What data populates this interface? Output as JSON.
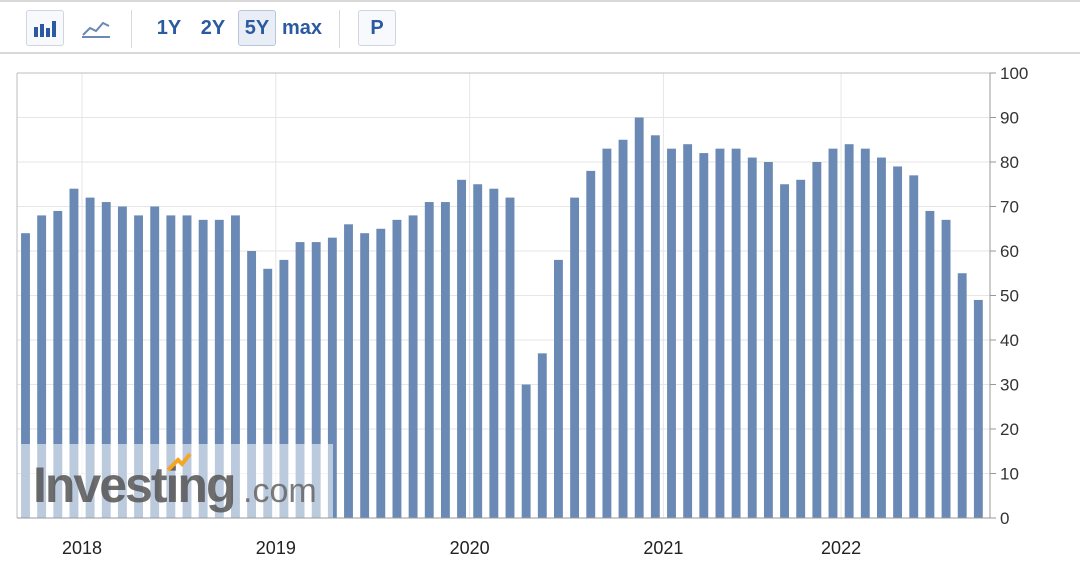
{
  "toolbar": {
    "bar_chart_icon": "bar-chart-icon",
    "line_chart_icon": "line-chart-icon",
    "ranges": [
      "1Y",
      "2Y",
      "5Y",
      "max"
    ],
    "active_range": "5Y",
    "print_label": "P"
  },
  "watermark": {
    "brand": "Investing",
    "suffix": ".com"
  },
  "colors": {
    "bar": "#6a89b4",
    "grid": "#e6e6e6",
    "accent": "#2c5aa0"
  },
  "chart_data": {
    "type": "bar",
    "title": "",
    "xlabel": "",
    "ylabel": "",
    "ylim": [
      0,
      100
    ],
    "yticks": [
      0,
      10,
      20,
      30,
      40,
      50,
      60,
      70,
      80,
      90,
      100
    ],
    "x_tick_labels": [
      "2018",
      "2019",
      "2020",
      "2021",
      "2022"
    ],
    "x_tick_bar_index": [
      3.5,
      15.5,
      27.5,
      39.5,
      50.5
    ],
    "grid": true,
    "y_axis_position": "right",
    "values": [
      64,
      68,
      69,
      74,
      72,
      71,
      70,
      68,
      70,
      68,
      68,
      67,
      67,
      68,
      60,
      56,
      58,
      62,
      62,
      63,
      66,
      64,
      65,
      67,
      68,
      71,
      71,
      76,
      75,
      74,
      72,
      30,
      37,
      58,
      72,
      78,
      83,
      85,
      90,
      86,
      83,
      84,
      82,
      83,
      83,
      81,
      80,
      75,
      76,
      80,
      83,
      84,
      83,
      81,
      79,
      77,
      69,
      67,
      55,
      49
    ]
  }
}
